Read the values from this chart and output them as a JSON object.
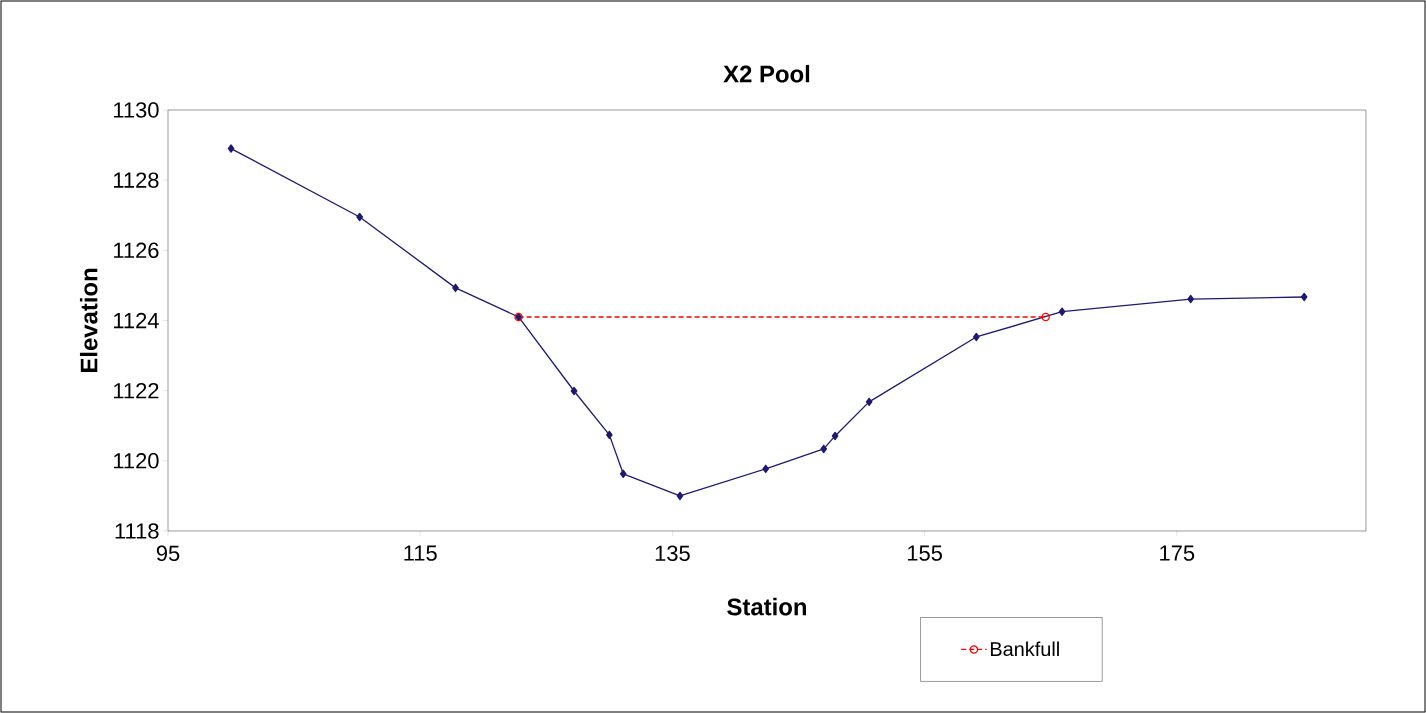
{
  "chart_data": {
    "type": "line",
    "title": "X2 Pool",
    "xlabel": "Station",
    "ylabel": "Elevation",
    "xlim": [
      95,
      190
    ],
    "xticks": [
      95,
      115,
      135,
      155,
      175
    ],
    "ylim": [
      1118,
      1130
    ],
    "yticks": [
      1118,
      1120,
      1122,
      1124,
      1126,
      1128,
      1130
    ],
    "grid": false,
    "legend": "bottom right",
    "series": [
      {
        "color": "#1f1a6e",
        "marker": "diamond",
        "line_style": "solid",
        "x": [
          100,
          110.2,
          117.8,
          122.8,
          127.2,
          130.0,
          131.1,
          135.6,
          142.4,
          147.0,
          147.9,
          150.6,
          159.1,
          165.9,
          176.1,
          185.1
        ],
        "values": [
          1128.9,
          1126.95,
          1124.93,
          1124.1,
          1121.99,
          1120.74,
          1119.63,
          1119.0,
          1119.77,
          1120.34,
          1120.71,
          1121.68,
          1123.53,
          1124.25,
          1124.61,
          1124.67
        ]
      },
      {
        "name": "Bankfull",
        "color": "#ff0000",
        "marker": "circle",
        "line_style": "dashed",
        "x": [
          122.8,
          164.6
        ],
        "values": [
          1124.1,
          1124.1
        ]
      }
    ]
  }
}
